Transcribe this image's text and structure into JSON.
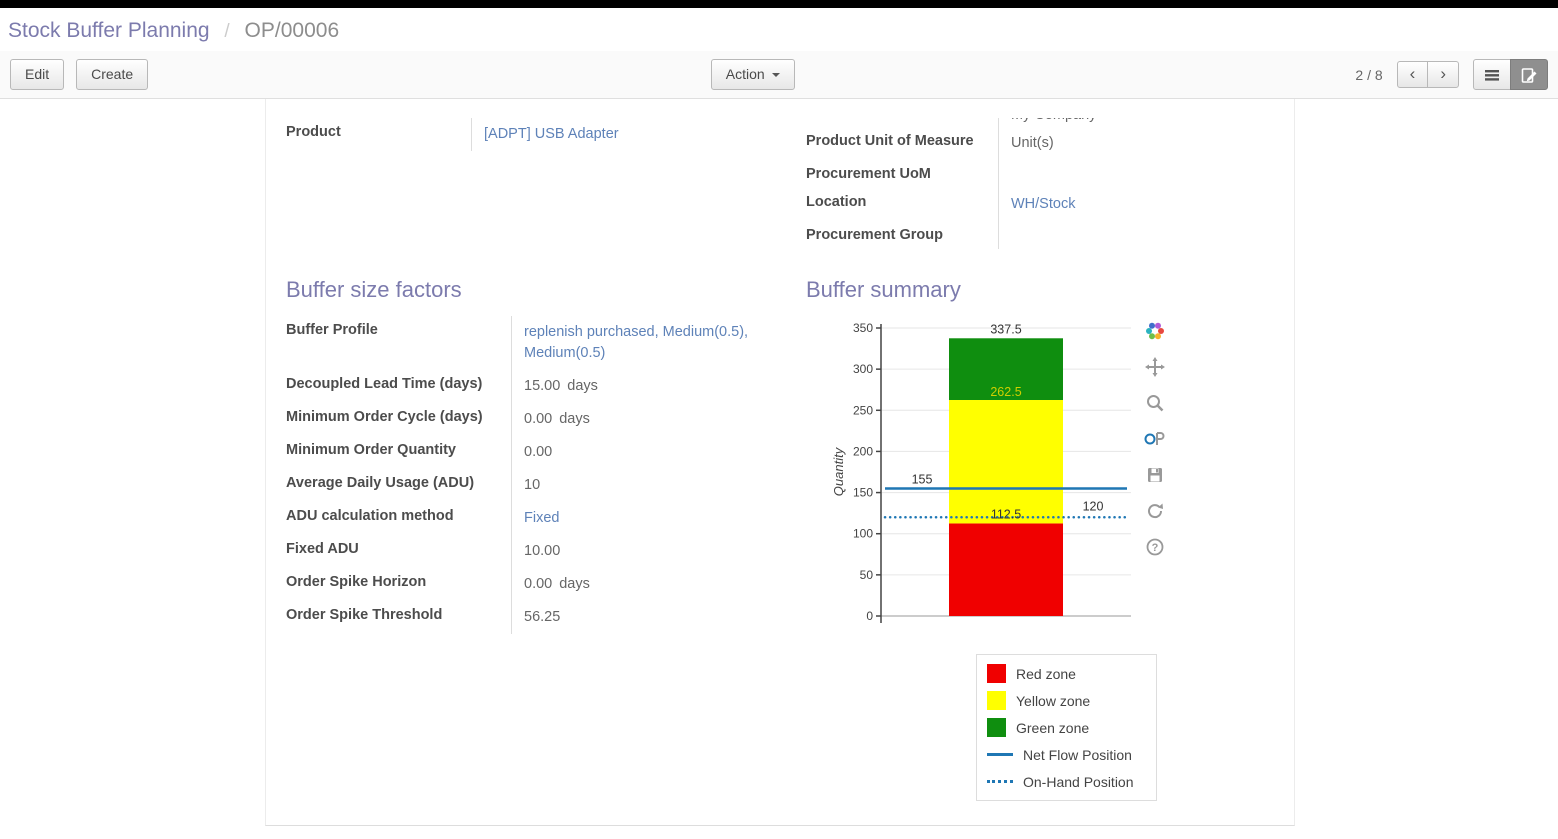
{
  "colors": {
    "accent": "#7c7bad",
    "link": "#5e82b8",
    "net_flow_line": "#1f77b4"
  },
  "breadcrumb": {
    "root": "Stock Buffer Planning",
    "separator": "/",
    "current": "OP/00006"
  },
  "toolbar": {
    "edit_label": "Edit",
    "create_label": "Create",
    "action_label": "Action",
    "pager": "2 / 8"
  },
  "form": {
    "clipped_company_value": "My Company",
    "product": {
      "label": "Product",
      "value": "[ADPT] USB Adapter"
    },
    "right_fields": [
      {
        "label": "Product Unit of Measure",
        "value": "Unit(s)"
      },
      {
        "label": "Procurement UoM",
        "value": ""
      },
      {
        "label": "Location",
        "value": "WH/Stock"
      },
      {
        "label": "Procurement Group",
        "value": ""
      }
    ],
    "buffer_factors": {
      "title": "Buffer size factors",
      "rows": [
        {
          "label": "Buffer Profile",
          "value": "replenish purchased, Medium(0.5), Medium(0.5)"
        },
        {
          "label": "Decoupled Lead Time (days)",
          "value": "15.00",
          "suffix": "days"
        },
        {
          "label": "Minimum Order Cycle (days)",
          "value": "0.00",
          "suffix": "days"
        },
        {
          "label": "Minimum Order Quantity",
          "value": "0.00"
        },
        {
          "label": "Average Daily Usage (ADU)",
          "value": "10"
        },
        {
          "label": "ADU calculation method",
          "value": "Fixed"
        },
        {
          "label": "Fixed ADU",
          "value": "10.00"
        },
        {
          "label": "Order Spike Horizon",
          "value": "0.00",
          "suffix": "days"
        },
        {
          "label": "Order Spike Threshold",
          "value": "56.25"
        }
      ]
    },
    "buffer_summary_title": "Buffer summary"
  },
  "chart_data": {
    "type": "bar",
    "title": "",
    "xlabel": "",
    "ylabel": "Quantity",
    "ylim": [
      0,
      350
    ],
    "yticks": [
      0,
      50,
      100,
      150,
      200,
      250,
      300,
      350
    ],
    "grid": true,
    "zones": [
      {
        "name": "Red zone",
        "from": 0,
        "to": 112.5,
        "color": "#f00000"
      },
      {
        "name": "Yellow zone",
        "from": 112.5,
        "to": 262.5,
        "color": "#ffff00"
      },
      {
        "name": "Green zone",
        "from": 262.5,
        "to": 337.5,
        "color": "#0f8e0f"
      }
    ],
    "lines": [
      {
        "name": "Net Flow Position",
        "value": 155,
        "style": "solid",
        "color": "#1f77b4"
      },
      {
        "name": "On-Hand Position",
        "value": 120,
        "style": "dotted",
        "color": "#1f77b4"
      }
    ],
    "annotations": [
      {
        "text": "337.5",
        "v": 337.5,
        "pos": "center",
        "dy": -5,
        "color": "#333333"
      },
      {
        "text": "262.5",
        "v": 262.5,
        "pos": "center",
        "dy": -4,
        "color": "#cfcf00"
      },
      {
        "text": "155",
        "v": 155,
        "pos": "left",
        "dy": -5,
        "color": "#333333"
      },
      {
        "text": "112.5",
        "v": 112.5,
        "pos": "center",
        "dy": -5,
        "color": "#333333"
      },
      {
        "text": "120",
        "v": 120,
        "pos": "right",
        "dy": -7,
        "color": "#333333"
      }
    ],
    "legend_position": "bottom-right",
    "legend": [
      {
        "label": "Red zone",
        "swatch": "box",
        "color": "#f00000"
      },
      {
        "label": "Yellow zone",
        "swatch": "box",
        "color": "#ffff00"
      },
      {
        "label": "Green zone",
        "swatch": "box",
        "color": "#0f8e0f"
      },
      {
        "label": "Net Flow Position",
        "swatch": "line",
        "color": "#1f77b4"
      },
      {
        "label": "On-Hand Position",
        "swatch": "dots",
        "color": "#1f77b4"
      }
    ],
    "modebar_icons": [
      "plotly-logo",
      "pan",
      "zoom",
      "compare",
      "save",
      "reset-axes",
      "help"
    ]
  }
}
